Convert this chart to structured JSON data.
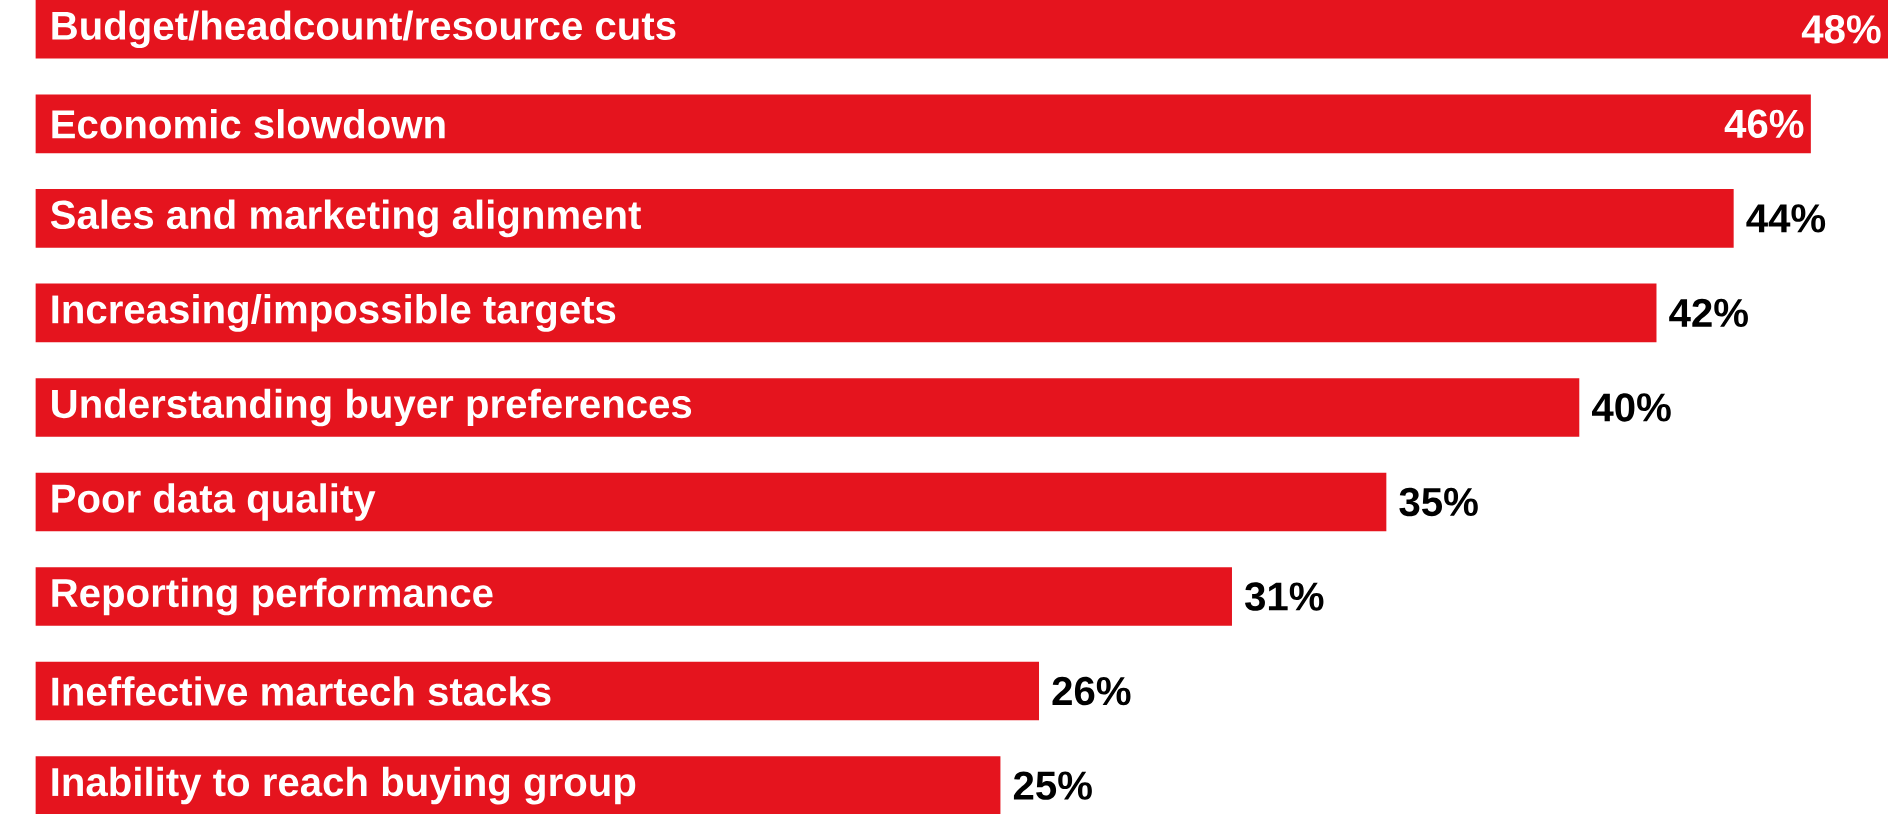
{
  "chart_data": {
    "type": "bar",
    "orientation": "horizontal",
    "relative": false,
    "categories": [
      "Budget/headcount/resource cuts",
      "Economic slowdown",
      "Sales and marketing alignment",
      "Increasing/impossible targets",
      "Understanding buyer preferences",
      "Poor data quality",
      "Reporting performance",
      "Ineffective martech stacks",
      "Inability to reach buying group"
    ],
    "values": [
      48,
      46,
      44,
      42,
      40,
      35,
      31,
      26,
      25
    ],
    "value_labels": [
      "48%",
      "46%",
      "44%",
      "42%",
      "40%",
      "35%",
      "31%",
      "26%",
      "25%"
    ],
    "color": "#e5141e"
  }
}
